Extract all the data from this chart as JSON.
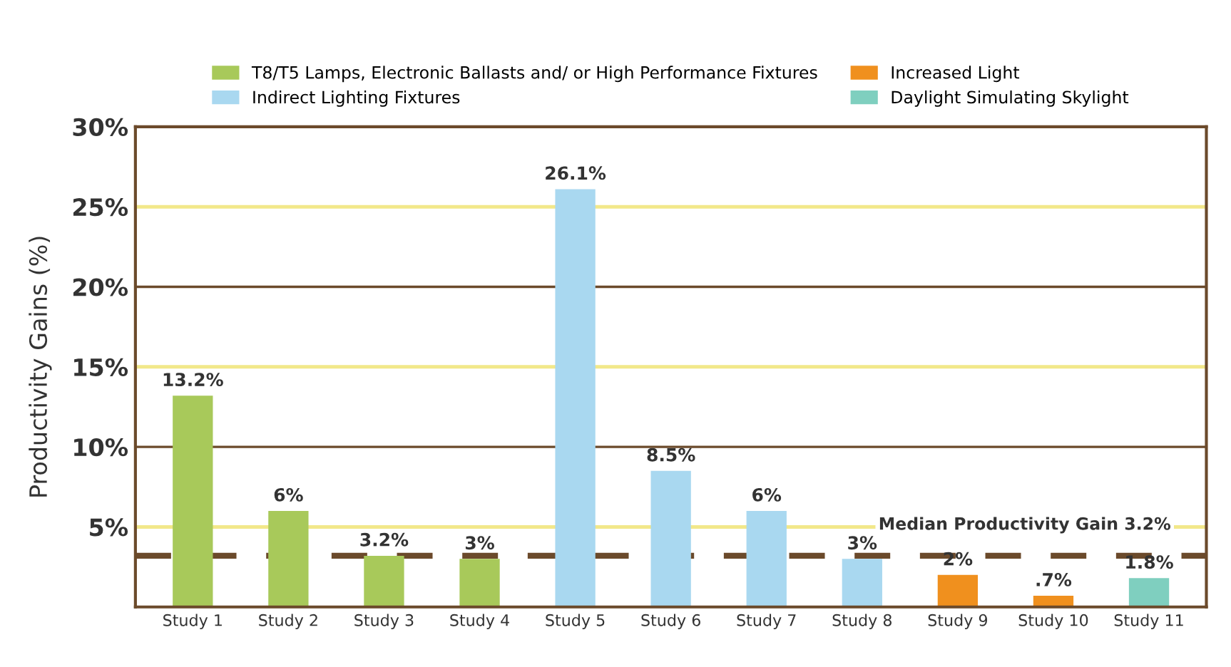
{
  "chart_data": {
    "type": "bar",
    "ylabel": "Productivity Gains (%)",
    "categories": [
      "Study 1",
      "Study 2",
      "Study 3",
      "Study 4",
      "Study 5",
      "Study 6",
      "Study 7",
      "Study 8",
      "Study 9",
      "Study 10",
      "Study 11"
    ],
    "series": [
      {
        "name": "T8/T5 Lamps, Electronic Ballasts and/ or High Performance Fixtures",
        "color": "#a8c95a",
        "values": [
          13.2,
          6,
          3.2,
          3,
          null,
          null,
          null,
          null,
          null,
          null,
          null
        ],
        "value_labels": [
          "13.2%",
          "6%",
          "3.2%",
          "3%",
          null,
          null,
          null,
          null,
          null,
          null,
          null
        ]
      },
      {
        "name": "Indirect Lighting Fixtures",
        "color": "#a9d8f0",
        "values": [
          null,
          null,
          null,
          null,
          26.1,
          8.5,
          6,
          3,
          null,
          null,
          null
        ],
        "value_labels": [
          null,
          null,
          null,
          null,
          "26.1%",
          "8.5%",
          "6%",
          "3%",
          null,
          null,
          null
        ]
      },
      {
        "name": "Increased Light",
        "color": "#f0901e",
        "values": [
          null,
          null,
          null,
          null,
          null,
          null,
          null,
          null,
          2,
          0.7,
          null
        ],
        "value_labels": [
          null,
          null,
          null,
          null,
          null,
          null,
          null,
          null,
          "2%",
          ".7%",
          null
        ]
      },
      {
        "name": "Daylight Simulating Skylight",
        "color": "#7fcfbf",
        "values": [
          null,
          null,
          null,
          null,
          null,
          null,
          null,
          null,
          null,
          null,
          1.8
        ],
        "value_labels": [
          null,
          null,
          null,
          null,
          null,
          null,
          null,
          null,
          null,
          null,
          "1.8%"
        ]
      }
    ],
    "ylim": [
      0,
      30
    ],
    "yticks": [
      {
        "value": 5,
        "label": "5%"
      },
      {
        "value": 10,
        "label": "10%"
      },
      {
        "value": 15,
        "label": "15%"
      },
      {
        "value": 20,
        "label": "20%"
      },
      {
        "value": 25,
        "label": "25%"
      },
      {
        "value": 30,
        "label": "30%"
      }
    ],
    "ref_lines": [
      {
        "axis": "y",
        "value": 3.2,
        "label": "Median Productivity Gain 3.2%",
        "color": "#6b4a2b",
        "line_style": "dashed"
      }
    ],
    "grid": "y",
    "legend": "top"
  }
}
